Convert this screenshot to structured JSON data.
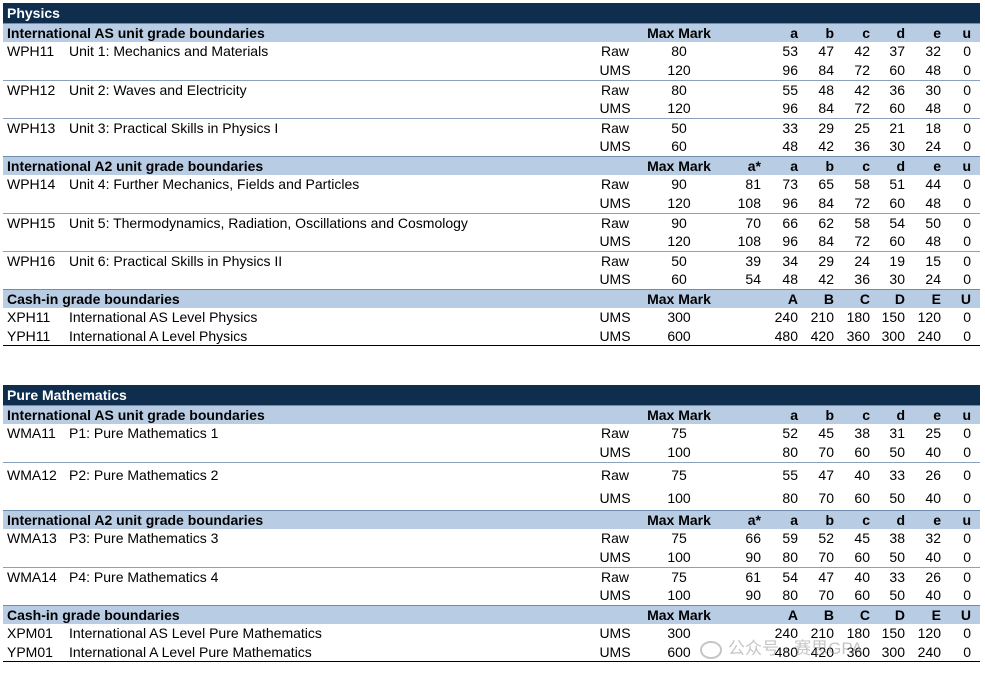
{
  "physics": {
    "title": "Physics",
    "as_header": {
      "label": "International AS unit grade boundaries",
      "max": "Max Mark",
      "grades": [
        "",
        "a",
        "b",
        "c",
        "d",
        "e",
        "u"
      ]
    },
    "units_as": [
      {
        "code": "WPH11",
        "title": "Unit 1: Mechanics and Materials",
        "raw": {
          "type": "Raw",
          "max": "80",
          "g": [
            "",
            "53",
            "47",
            "42",
            "37",
            "32",
            "0"
          ]
        },
        "ums": {
          "type": "UMS",
          "max": "120",
          "g": [
            "",
            "96",
            "84",
            "72",
            "60",
            "48",
            "0"
          ]
        }
      },
      {
        "code": "WPH12",
        "title": "Unit 2: Waves and Electricity",
        "raw": {
          "type": "Raw",
          "max": "80",
          "g": [
            "",
            "55",
            "48",
            "42",
            "36",
            "30",
            "0"
          ]
        },
        "ums": {
          "type": "UMS",
          "max": "120",
          "g": [
            "",
            "96",
            "84",
            "72",
            "60",
            "48",
            "0"
          ]
        }
      },
      {
        "code": "WPH13",
        "title": "Unit 3: Practical Skills in Physics I",
        "raw": {
          "type": "Raw",
          "max": "50",
          "g": [
            "",
            "33",
            "29",
            "25",
            "21",
            "18",
            "0"
          ]
        },
        "ums": {
          "type": "UMS",
          "max": "60",
          "g": [
            "",
            "48",
            "42",
            "36",
            "30",
            "24",
            "0"
          ]
        }
      }
    ],
    "a2_header": {
      "label": "International A2 unit grade boundaries",
      "max": "Max Mark",
      "grades": [
        "a*",
        "a",
        "b",
        "c",
        "d",
        "e",
        "u"
      ]
    },
    "units_a2": [
      {
        "code": "WPH14",
        "title": "Unit 4: Further Mechanics, Fields and Particles",
        "raw": {
          "type": "Raw",
          "max": "90",
          "g": [
            "81",
            "73",
            "65",
            "58",
            "51",
            "44",
            "0"
          ]
        },
        "ums": {
          "type": "UMS",
          "max": "120",
          "g": [
            "108",
            "96",
            "84",
            "72",
            "60",
            "48",
            "0"
          ]
        }
      },
      {
        "code": "WPH15",
        "title": "Unit 5: Thermodynamics, Radiation, Oscillations and Cosmology",
        "raw": {
          "type": "Raw",
          "max": "90",
          "g": [
            "70",
            "66",
            "62",
            "58",
            "54",
            "50",
            "0"
          ]
        },
        "ums": {
          "type": "UMS",
          "max": "120",
          "g": [
            "108",
            "96",
            "84",
            "72",
            "60",
            "48",
            "0"
          ]
        }
      },
      {
        "code": "WPH16",
        "title": "Unit 6: Practical Skills in Physics II",
        "raw": {
          "type": "Raw",
          "max": "50",
          "g": [
            "39",
            "34",
            "29",
            "24",
            "19",
            "15",
            "0"
          ]
        },
        "ums": {
          "type": "UMS",
          "max": "60",
          "g": [
            "54",
            "48",
            "42",
            "36",
            "30",
            "24",
            "0"
          ]
        }
      }
    ],
    "cash_header": {
      "label": "Cash-in grade boundaries",
      "max": "Max Mark",
      "grades": [
        "",
        "A",
        "B",
        "C",
        "D",
        "E",
        "U"
      ]
    },
    "cash": [
      {
        "code": "XPH11",
        "title": "International AS Level Physics",
        "type": "UMS",
        "max": "300",
        "g": [
          "",
          "240",
          "210",
          "180",
          "150",
          "120",
          "0"
        ]
      },
      {
        "code": "YPH11",
        "title": "International A Level Physics",
        "type": "UMS",
        "max": "600",
        "g": [
          "",
          "480",
          "420",
          "360",
          "300",
          "240",
          "0"
        ]
      }
    ]
  },
  "maths": {
    "title": "Pure Mathematics",
    "as_header": {
      "label": "International AS unit grade boundaries",
      "max": "Max Mark",
      "grades": [
        "",
        "a",
        "b",
        "c",
        "d",
        "e",
        "u"
      ]
    },
    "units_as": [
      {
        "code": "WMA11",
        "title": "P1: Pure Mathematics 1",
        "raw": {
          "type": "Raw",
          "max": "75",
          "g": [
            "",
            "52",
            "45",
            "38",
            "31",
            "25",
            "0"
          ]
        },
        "ums": {
          "type": "UMS",
          "max": "100",
          "g": [
            "",
            "80",
            "70",
            "60",
            "50",
            "40",
            "0"
          ]
        }
      },
      {
        "code": "WMA12",
        "title": "P2: Pure Mathematics 2",
        "raw": {
          "type": "Raw",
          "max": "75",
          "g": [
            "",
            "55",
            "47",
            "40",
            "33",
            "26",
            "0"
          ]
        },
        "ums": {
          "type": "UMS",
          "max": "100",
          "g": [
            "",
            "80",
            "70",
            "60",
            "50",
            "40",
            "0"
          ]
        }
      }
    ],
    "a2_header": {
      "label": "International A2 unit grade boundaries",
      "max": "Max Mark",
      "grades": [
        "a*",
        "a",
        "b",
        "c",
        "d",
        "e",
        "u"
      ]
    },
    "units_a2": [
      {
        "code": "WMA13",
        "title": "P3: Pure Mathematics 3",
        "raw": {
          "type": "Raw",
          "max": "75",
          "g": [
            "66",
            "59",
            "52",
            "45",
            "38",
            "32",
            "0"
          ]
        },
        "ums": {
          "type": "UMS",
          "max": "100",
          "g": [
            "90",
            "80",
            "70",
            "60",
            "50",
            "40",
            "0"
          ]
        }
      },
      {
        "code": "WMA14",
        "title": "P4: Pure Mathematics 4",
        "raw": {
          "type": "Raw",
          "max": "75",
          "g": [
            "61",
            "54",
            "47",
            "40",
            "33",
            "26",
            "0"
          ]
        },
        "ums": {
          "type": "UMS",
          "max": "100",
          "g": [
            "90",
            "80",
            "70",
            "60",
            "50",
            "40",
            "0"
          ]
        }
      }
    ],
    "cash_header": {
      "label": "Cash-in grade boundaries",
      "max": "Max Mark",
      "grades": [
        "",
        "A",
        "B",
        "C",
        "D",
        "E",
        "U"
      ]
    },
    "cash": [
      {
        "code": "XPM01",
        "title": "International AS Level Pure Mathematics",
        "type": "UMS",
        "max": "300",
        "g": [
          "",
          "240",
          "210",
          "180",
          "150",
          "120",
          "0"
        ]
      },
      {
        "code": "YPM01",
        "title": "International A Level Pure Mathematics",
        "type": "UMS",
        "max": "600",
        "g": [
          "",
          "480",
          "420",
          "360",
          "300",
          "240",
          "0"
        ]
      }
    ]
  },
  "watermark": {
    "text": "公众号 · 赛思GPA"
  },
  "colors": {
    "title_bar": "#0f2d4d",
    "section_bar": "#b8cce4"
  }
}
